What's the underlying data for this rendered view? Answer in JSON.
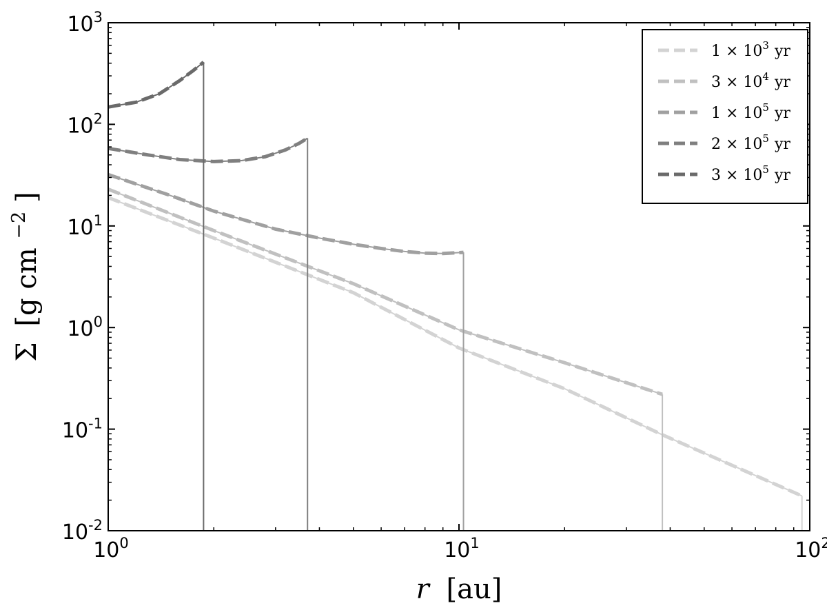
{
  "chart_data": {
    "type": "line",
    "xscale": "log",
    "yscale": "log",
    "xlim": [
      1,
      100
    ],
    "ylim": [
      0.01,
      1000
    ],
    "x_ticks": [
      {
        "value": 1,
        "base": "10",
        "exp": "0"
      },
      {
        "value": 10,
        "base": "10",
        "exp": "1"
      },
      {
        "value": 100,
        "base": "10",
        "exp": "2"
      }
    ],
    "y_ticks": [
      {
        "value": 0.01,
        "base": "10",
        "exp": "-2"
      },
      {
        "value": 0.1,
        "base": "10",
        "exp": "-1"
      },
      {
        "value": 1,
        "base": "10",
        "exp": "0"
      },
      {
        "value": 10,
        "base": "10",
        "exp": "1"
      },
      {
        "value": 100,
        "base": "10",
        "exp": "2"
      },
      {
        "value": 1000,
        "base": "10",
        "exp": "3"
      }
    ],
    "xlabel": {
      "main": "r",
      "unit": "[au]"
    },
    "ylabel": {
      "main": "Σ",
      "unit": "[g cm",
      "exp": "−2",
      "close": "]"
    },
    "grid": false,
    "legend_position": "top-right",
    "series": [
      {
        "name": "1 × 10³ yr",
        "legend_mantissa": "1 × 10",
        "legend_exp": "3",
        "legend_unit": "yr",
        "color": "#d3d3d3",
        "r_edge": 95,
        "x": [
          1,
          2,
          5,
          10,
          20,
          38,
          95
        ],
        "y": [
          19.0,
          7.6,
          2.2,
          0.63,
          0.25,
          0.088,
          0.022
        ]
      },
      {
        "name": "3 × 10⁴ yr",
        "legend_mantissa": "3 × 10",
        "legend_exp": "4",
        "legend_unit": "yr",
        "color": "#c0c0c0",
        "r_edge": 38,
        "x": [
          1,
          2,
          5,
          10,
          20,
          38
        ],
        "y": [
          23.0,
          9.0,
          2.7,
          0.95,
          0.45,
          0.22
        ]
      },
      {
        "name": "1 × 10⁵ yr",
        "legend_mantissa": "1 × 10",
        "legend_exp": "5",
        "legend_unit": "yr",
        "color": "#a0a0a0",
        "r_edge": 10.3,
        "x": [
          1,
          1.5,
          2,
          3,
          4,
          5,
          6,
          7,
          8,
          9,
          10.3
        ],
        "y": [
          32.0,
          20.0,
          14.0,
          9.3,
          7.6,
          6.6,
          6.0,
          5.6,
          5.4,
          5.35,
          5.5
        ]
      },
      {
        "name": "2 × 10⁵ yr",
        "legend_mantissa": "2 × 10",
        "legend_exp": "5",
        "legend_unit": "yr",
        "color": "#7f7f7f",
        "r_edge": 3.7,
        "x": [
          1,
          1.3,
          1.6,
          2,
          2.4,
          2.8,
          3.2,
          3.5,
          3.7
        ],
        "y": [
          58.0,
          50.0,
          45.0,
          43.0,
          44.0,
          48.0,
          56.0,
          65.0,
          73.0
        ]
      },
      {
        "name": "3 × 10⁵ yr",
        "legend_mantissa": "3 × 10",
        "legend_exp": "5",
        "legend_unit": "yr",
        "color": "#6a6a6a",
        "r_edge": 1.87,
        "x": [
          1,
          1.2,
          1.4,
          1.6,
          1.75,
          1.87
        ],
        "y": [
          148.0,
          165.0,
          200.0,
          270.0,
          340.0,
          410.0
        ]
      }
    ]
  }
}
